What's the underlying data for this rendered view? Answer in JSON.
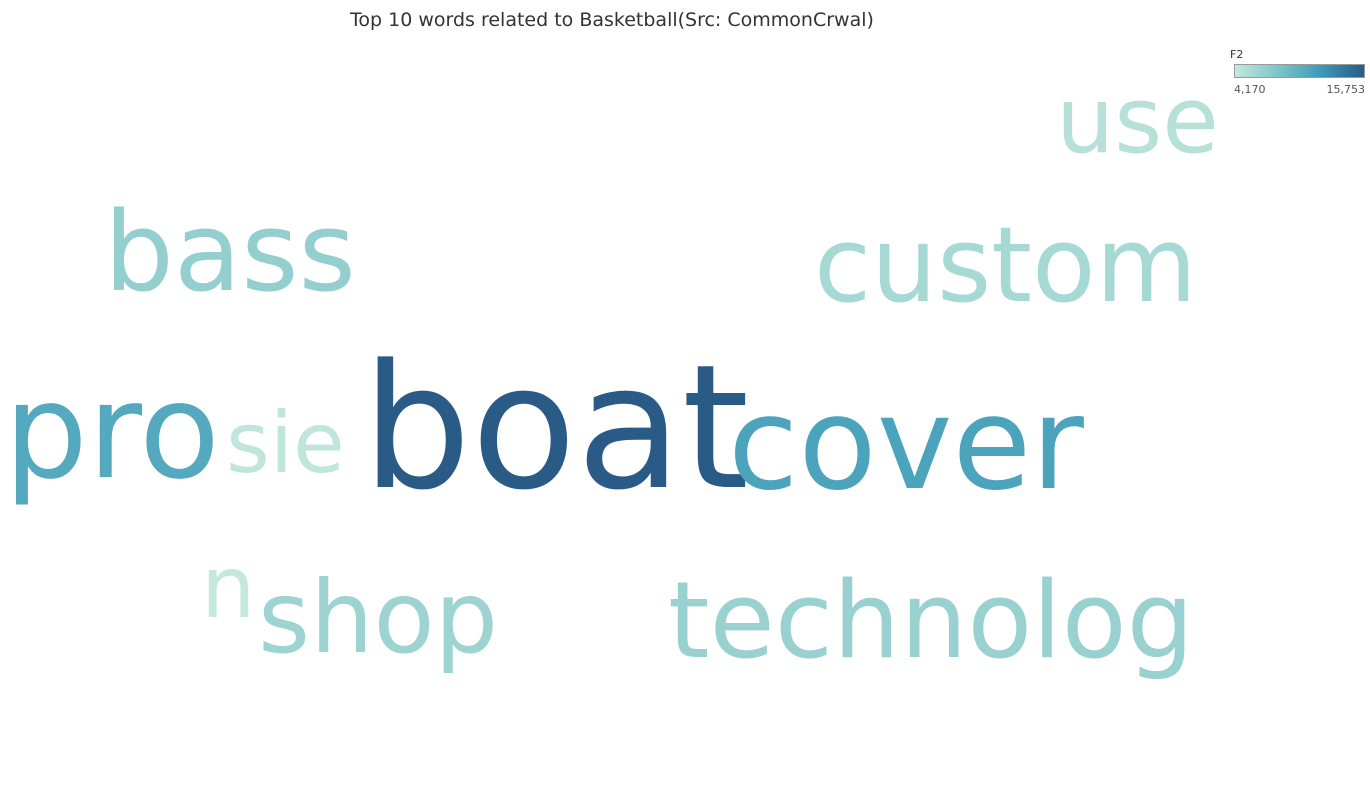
{
  "chart_data": {
    "type": "wordcloud",
    "title": "Top 10 words related to Basketball(Src: CommonCrwal)",
    "legend": {
      "field": "F2",
      "min_label": "4,170",
      "max_label": "15,753",
      "min": 4170,
      "max": 15753,
      "colors": [
        "#c4e8dc",
        "#7ec4c8",
        "#3d9ab8",
        "#2a5b86"
      ],
      "placement": "top-right"
    },
    "words": [
      {
        "text": "boat",
        "value": 15753
      },
      {
        "text": "cover",
        "value": 11000
      },
      {
        "text": "pro",
        "value": 10500
      },
      {
        "text": "technolog",
        "value": 6600
      },
      {
        "text": "bass",
        "value": 6900
      },
      {
        "text": "shop",
        "value": 6300
      },
      {
        "text": "custom",
        "value": 5800
      },
      {
        "text": "use",
        "value": 4900
      },
      {
        "text": "sie",
        "value": 4400
      },
      {
        "text": "n",
        "value": 4170
      }
    ]
  }
}
